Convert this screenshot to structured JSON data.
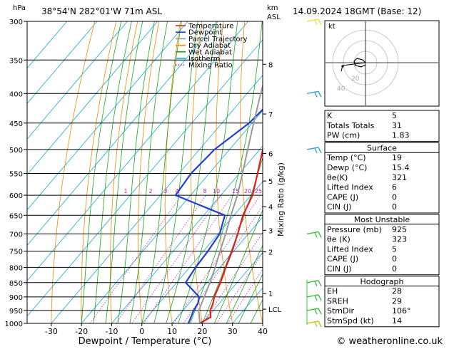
{
  "header": {
    "hpa_unit": "hPa",
    "location": "38°54'N 282°01'W 71m ASL",
    "km_unit": "km",
    "asl_unit": "ASL",
    "datetime": "14.09.2024 18GMT (Base: 12)"
  },
  "legend": [
    {
      "label": "Temperature",
      "color": "#e02020",
      "dash": ""
    },
    {
      "label": "Dewpoint",
      "color": "#1f3fd8",
      "dash": ""
    },
    {
      "label": "Parcel Trajectory",
      "color": "#999999",
      "dash": ""
    },
    {
      "label": "Dry Adiabat",
      "color": "#f08a00",
      "dash": ""
    },
    {
      "label": "Wet Adiabat",
      "color": "#18a818",
      "dash": ""
    },
    {
      "label": "Isotherm",
      "color": "#18a8e0",
      "dash": ""
    },
    {
      "label": "Mixing Ratio",
      "color": "#c020c0",
      "dash": "1.5,2"
    }
  ],
  "chart_data": {
    "type": "line",
    "xlabel": "Dewpoint / Temperature (°C)",
    "ylabel_right": "Mixing Ratio (g/kg)",
    "x_ticks": [
      -30,
      -20,
      -10,
      0,
      10,
      20,
      30,
      40
    ],
    "xlim": [
      -38,
      40
    ],
    "pressure_levels": [
      300,
      350,
      400,
      450,
      500,
      550,
      600,
      650,
      700,
      750,
      800,
      850,
      900,
      950,
      1000
    ],
    "ylim_hpa": [
      1000,
      300
    ],
    "height_labels": [
      "8",
      "7",
      "6",
      "5",
      "4",
      "3",
      "2",
      "1",
      "LCL"
    ],
    "mixing_ratio_labels": [
      "1",
      "2",
      "3",
      "4",
      "8",
      "10",
      "15",
      "20",
      "25"
    ],
    "series": [
      {
        "name": "Temperature",
        "color": "#e02020",
        "points": [
          [
            1000,
            19.2
          ],
          [
            975,
            21
          ],
          [
            950,
            19
          ],
          [
            925,
            18
          ],
          [
            900,
            16.5
          ],
          [
            850,
            14.5
          ],
          [
            800,
            12
          ],
          [
            750,
            9.5
          ],
          [
            700,
            6.5
          ],
          [
            650,
            3
          ],
          [
            600,
            0.5
          ],
          [
            550,
            -4
          ],
          [
            500,
            -9
          ],
          [
            450,
            -14.5
          ],
          [
            400,
            -20
          ],
          [
            350,
            -25.5
          ],
          [
            300,
            -32
          ]
        ]
      },
      {
        "name": "Dewpoint",
        "color": "#1f3fd8",
        "points": [
          [
            1000,
            15.4
          ],
          [
            975,
            14.5
          ],
          [
            950,
            13.5
          ],
          [
            925,
            13
          ],
          [
            900,
            11.5
          ],
          [
            850,
            3
          ],
          [
            800,
            2
          ],
          [
            750,
            1.5
          ],
          [
            700,
            0.5
          ],
          [
            650,
            -3
          ],
          [
            600,
            -25
          ],
          [
            550,
            -26
          ],
          [
            500,
            -25
          ],
          [
            450,
            -21
          ],
          [
            400,
            -19.5
          ],
          [
            350,
            -17.5
          ],
          [
            300,
            -8
          ]
        ]
      },
      {
        "name": "Parcel Trajectory",
        "color": "#999999",
        "points": [
          [
            1000,
            19.2
          ],
          [
            950,
            15.2
          ],
          [
            925,
            14.2
          ],
          [
            900,
            13.2
          ],
          [
            850,
            11
          ],
          [
            800,
            8.5
          ],
          [
            750,
            5.5
          ],
          [
            700,
            2.5
          ],
          [
            650,
            -1
          ],
          [
            600,
            -4.5
          ],
          [
            550,
            -9
          ],
          [
            500,
            -14
          ],
          [
            450,
            -19.5
          ],
          [
            400,
            -25.5
          ],
          [
            350,
            -32
          ],
          [
            300,
            -38
          ]
        ]
      }
    ]
  },
  "stats_index": [
    {
      "label": "K",
      "value": "5"
    },
    {
      "label": "Totals Totals",
      "value": "31"
    },
    {
      "label": "PW (cm)",
      "value": "1.83"
    }
  ],
  "surface": {
    "title": "Surface",
    "rows": [
      {
        "label": "Temp (°C)",
        "value": "19"
      },
      {
        "label": "Dewp (°C)",
        "value": "15.4"
      },
      {
        "label": "θe(K)",
        "value": "321"
      },
      {
        "label": "Lifted Index",
        "value": "6"
      },
      {
        "label": "CAPE (J)",
        "value": "0"
      },
      {
        "label": "CIN (J)",
        "value": "0"
      }
    ]
  },
  "most_unstable": {
    "title": "Most Unstable",
    "rows": [
      {
        "label": "Pressure (mb)",
        "value": "925"
      },
      {
        "label": "θe (K)",
        "value": "323"
      },
      {
        "label": "Lifted Index",
        "value": "5"
      },
      {
        "label": "CAPE (J)",
        "value": "0"
      },
      {
        "label": "CIN (J)",
        "value": "0"
      }
    ]
  },
  "hodograph_stats": {
    "title": "Hodograph",
    "rows": [
      {
        "label": "EH",
        "value": "28"
      },
      {
        "label": "SREH",
        "value": "29"
      },
      {
        "label": "StmDir",
        "value": "106°"
      },
      {
        "label": "StmSpd (kt)",
        "value": "14"
      }
    ]
  },
  "hodograph": {
    "label": "kt",
    "ring_labels": [
      "20",
      "40"
    ]
  },
  "footer": {
    "copyright": "© weatheronline.co.uk"
  }
}
